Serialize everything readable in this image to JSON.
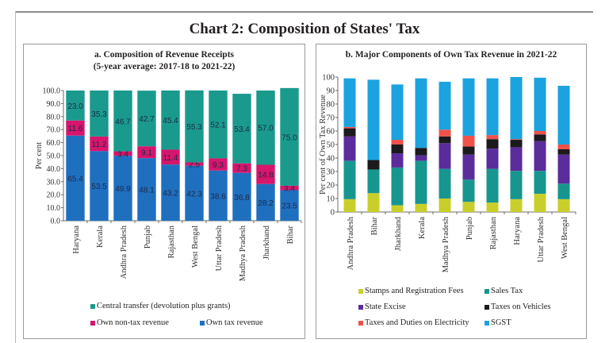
{
  "page": {
    "title": "Chart 2: Composition of States' Tax"
  },
  "chart_data": [
    {
      "type": "bar",
      "stacked": true,
      "title": "a. Composition of Revenue Receipts",
      "subtitle": "(5-year average: 2017-18 to 2021-22)",
      "xlabel": "",
      "ylabel": "Per cent",
      "ylim": [
        0,
        100
      ],
      "yticks": [
        "0.0",
        "10.0",
        "20.0",
        "30.0",
        "40.0",
        "50.0",
        "60.0",
        "70.0",
        "80.0",
        "90.0",
        "100.0"
      ],
      "categories": [
        "Haryana",
        "Kerala",
        "Andhra Pradesh",
        "Punjab",
        "Rajasthan",
        "West Bengal",
        "Uttar Pradesh",
        "Madhya Pradesh",
        "Jharkhand",
        "Bihar"
      ],
      "series": [
        {
          "name": "Own tax revenue",
          "color": "#1f6fbf",
          "values": [
            65.4,
            53.5,
            49.9,
            48.1,
            43.2,
            42.3,
            38.6,
            36.8,
            28.2,
            23.5
          ]
        },
        {
          "name": "Own non-tax revenue",
          "color": "#d6156c",
          "values": [
            11.6,
            11.2,
            3.4,
            9.1,
            11.4,
            2.5,
            9.3,
            7.3,
            14.8,
            3.4
          ]
        },
        {
          "name": "Central transfer (devolution plus grants)",
          "color": "#1a9a8c",
          "values": [
            23.0,
            35.3,
            46.7,
            42.7,
            45.4,
            55.3,
            52.1,
            53.4,
            57.0,
            75.0
          ]
        }
      ],
      "data_labels": true,
      "legend": {
        "position": "bottom",
        "entries": [
          "Central transfer (devolution plus grants)",
          "Own non-tax revenue",
          "Own tax revenue"
        ]
      }
    },
    {
      "type": "bar",
      "stacked": true,
      "title": "b. Major Components of Own Tax Revenue in 2021-22",
      "xlabel": "",
      "ylabel": "Per cent of Own Tax Revenue",
      "ylim": [
        0,
        100
      ],
      "yticks": [
        "0",
        "10",
        "20",
        "30",
        "40",
        "50",
        "60",
        "70",
        "80",
        "90",
        "100"
      ],
      "categories": [
        "Andhra Pradesh",
        "Bihar",
        "Jharkhand",
        "Kerala",
        "Madhya Pradesh",
        "Punjab",
        "Rajasthan",
        "Haryana",
        "Uttar Pradesh",
        "West Bengal"
      ],
      "series": [
        {
          "name": "Stamps and Registration Fees",
          "color": "#c9cf2a",
          "values": [
            9.5,
            14,
            5,
            6,
            10,
            7.5,
            7,
            9.5,
            13.5,
            9.5
          ]
        },
        {
          "name": "Sales Tax",
          "color": "#17968f",
          "values": [
            28.5,
            17.5,
            28,
            32,
            22,
            16.5,
            25,
            21,
            17,
            11.5
          ]
        },
        {
          "name": "State Excise",
          "color": "#5b2c9c",
          "values": [
            18,
            0,
            10.5,
            4,
            19,
            18.5,
            15,
            17.5,
            22,
            21.5
          ]
        },
        {
          "name": "Taxes on Vehicles",
          "color": "#1c1a1c",
          "values": [
            6,
            7,
            6.5,
            5.5,
            5,
            6,
            7,
            5.5,
            5,
            4
          ]
        },
        {
          "name": "Taxes and Duties on Electricity",
          "color": "#f0524a",
          "values": [
            1,
            0,
            3.5,
            0,
            5,
            8,
            3,
            0.5,
            2.5,
            3.5
          ]
        },
        {
          "name": "SGST",
          "color": "#1aa3df",
          "values": [
            36,
            59.5,
            41,
            51.5,
            35.5,
            42.5,
            42,
            46,
            39.5,
            43.5
          ]
        }
      ],
      "data_labels": false,
      "legend": {
        "position": "bottom",
        "entries": [
          "Stamps and Registration Fees",
          "Sales Tax",
          "State Excise",
          "Taxes on Vehicles",
          "Taxes and Duties on Electricity",
          "SGST"
        ]
      }
    }
  ]
}
